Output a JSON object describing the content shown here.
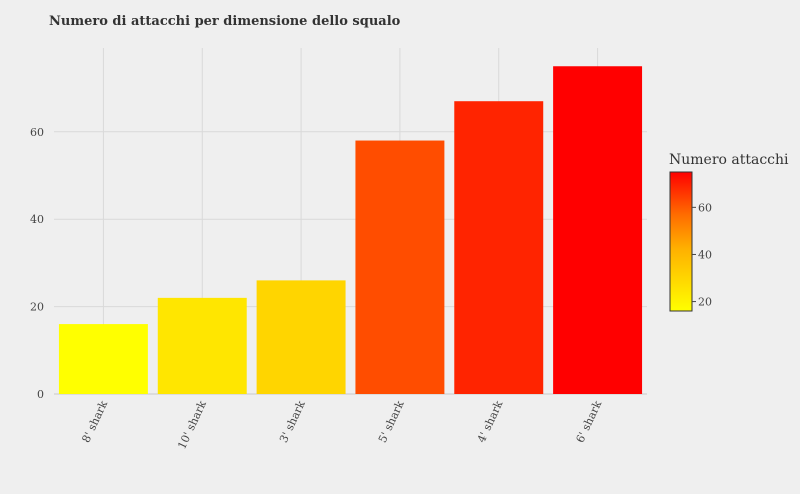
{
  "chart_data": {
    "type": "bar",
    "title": "Numero di attacchi per dimensione dello squalo",
    "xlabel": "",
    "ylabel": "",
    "categories": [
      "8' shark",
      "10' shark",
      "3' shark",
      "5' shark",
      "4' shark",
      "6' shark"
    ],
    "values": [
      16,
      22,
      26,
      58,
      67,
      75
    ],
    "ylim": [
      0,
      75
    ],
    "yticks": [
      0,
      20,
      40,
      60
    ],
    "grid": true,
    "colorscale": {
      "title": "Numero attacchi",
      "range": [
        16,
        75
      ],
      "ticks": [
        20,
        40,
        60
      ],
      "low_color": "#ffff00",
      "mid_color": "#ff8c00",
      "high_color": "#ff0000"
    },
    "legend_position": "right"
  }
}
